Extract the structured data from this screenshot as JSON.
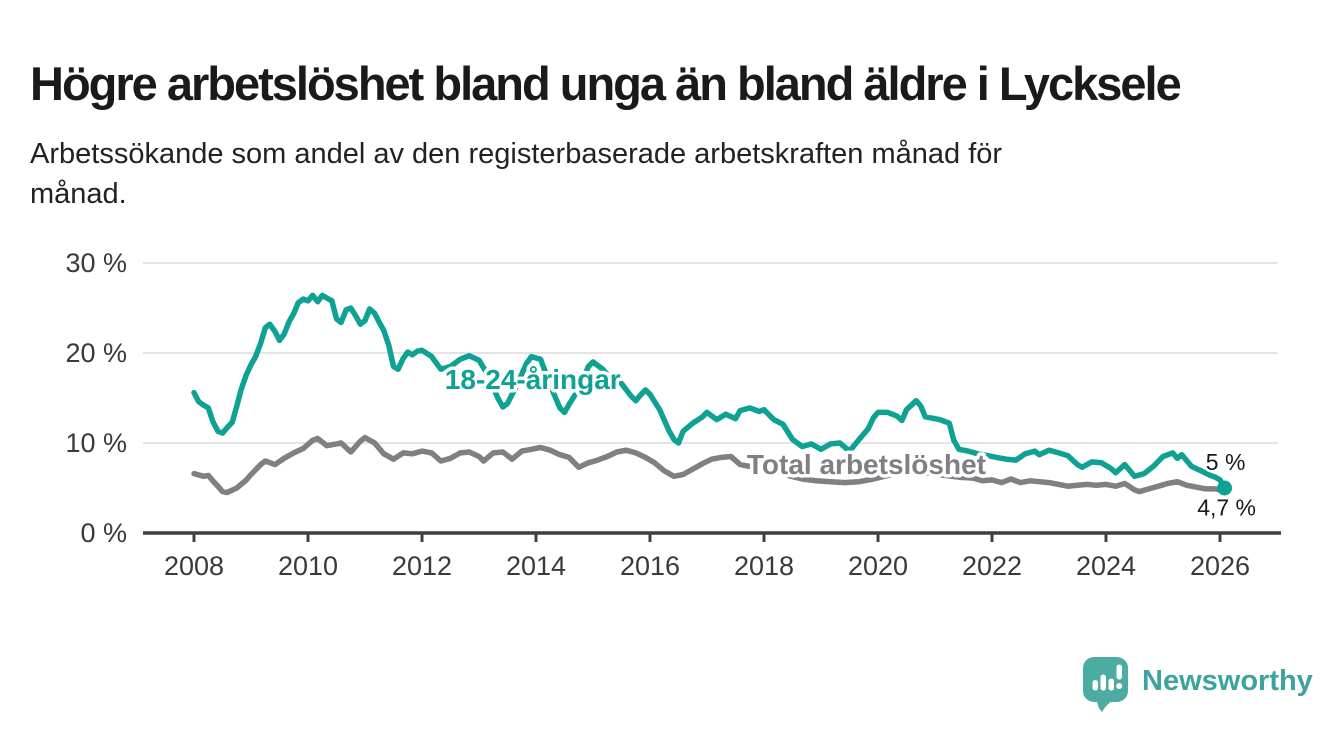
{
  "header": {
    "title": "Högre arbetslöshet bland unga än bland äldre i Lycksele",
    "subtitle_line1": "Arbetssökande som andel av den registerbaserade arbetskraften månad för",
    "subtitle_line2": "månad."
  },
  "footer": {
    "brand": "Newsworthy",
    "logo_icon": "speech-bubble-bar-chart",
    "brand_text_color": "#3ca49d",
    "logo_icon_color": "#4caca2"
  },
  "chart_data": {
    "type": "line",
    "title": "Högre arbetslöshet bland unga än bland äldre i Lycksele",
    "subtitle": "Arbetssökande som andel av den registerbaserade arbetskraften månad för månad.",
    "xlabel": "",
    "ylabel": "",
    "unit": "%",
    "xlim": [
      2007.1,
      2027.1
    ],
    "ylim": [
      0,
      31.5
    ],
    "grid": "horizontal",
    "legend": "direct-labels",
    "x_ticks": [
      2008,
      2010,
      2012,
      2014,
      2016,
      2018,
      2020,
      2022,
      2024,
      2026
    ],
    "x_tick_labels": [
      "2008",
      "2010",
      "2012",
      "2014",
      "2016",
      "2018",
      "2020",
      "2022",
      "2024",
      "2026"
    ],
    "y_ticks": [
      0,
      10,
      20,
      30
    ],
    "y_tick_labels": [
      "0 %",
      "10 %",
      "20 %",
      "30 %"
    ],
    "colors": {
      "grid": "#e4e4e4",
      "axis": "#3f3f3f",
      "tick_text": "#3a3a3a"
    },
    "series": [
      {
        "id": "youth",
        "name": "18-24-åringar",
        "color": "#0fa294",
        "width": 5.5,
        "end_dot": true,
        "end_label": "5 %",
        "last_value": 5.0,
        "points": [
          [
            2008.0,
            15.6
          ],
          [
            2008.08,
            14.6
          ],
          [
            2008.17,
            14.2
          ],
          [
            2008.25,
            13.9
          ],
          [
            2008.33,
            12.4
          ],
          [
            2008.42,
            11.3
          ],
          [
            2008.5,
            11.1
          ],
          [
            2008.58,
            11.7
          ],
          [
            2008.67,
            12.3
          ],
          [
            2008.75,
            14.1
          ],
          [
            2008.83,
            16.0
          ],
          [
            2008.92,
            17.6
          ],
          [
            2009.0,
            18.7
          ],
          [
            2009.08,
            19.6
          ],
          [
            2009.17,
            21.1
          ],
          [
            2009.25,
            22.8
          ],
          [
            2009.33,
            23.2
          ],
          [
            2009.42,
            22.4
          ],
          [
            2009.5,
            21.4
          ],
          [
            2009.58,
            22.1
          ],
          [
            2009.67,
            23.5
          ],
          [
            2009.75,
            24.4
          ],
          [
            2009.83,
            25.6
          ],
          [
            2009.92,
            26.0
          ],
          [
            2010.0,
            25.8
          ],
          [
            2010.08,
            26.4
          ],
          [
            2010.17,
            25.7
          ],
          [
            2010.25,
            26.4
          ],
          [
            2010.33,
            26.1
          ],
          [
            2010.42,
            25.8
          ],
          [
            2010.5,
            23.8
          ],
          [
            2010.58,
            23.4
          ],
          [
            2010.67,
            24.8
          ],
          [
            2010.75,
            25.0
          ],
          [
            2010.83,
            24.2
          ],
          [
            2010.92,
            23.2
          ],
          [
            2011.0,
            23.6
          ],
          [
            2011.08,
            24.9
          ],
          [
            2011.17,
            24.4
          ],
          [
            2011.25,
            23.4
          ],
          [
            2011.33,
            22.5
          ],
          [
            2011.42,
            20.8
          ],
          [
            2011.5,
            18.5
          ],
          [
            2011.58,
            18.2
          ],
          [
            2011.67,
            19.4
          ],
          [
            2011.75,
            20.1
          ],
          [
            2011.83,
            19.8
          ],
          [
            2011.92,
            20.2
          ],
          [
            2012.0,
            20.3
          ],
          [
            2012.17,
            19.6
          ],
          [
            2012.33,
            18.2
          ],
          [
            2012.5,
            18.5
          ],
          [
            2012.67,
            19.3
          ],
          [
            2012.83,
            19.7
          ],
          [
            2013.0,
            19.2
          ],
          [
            2013.17,
            17.4
          ],
          [
            2013.33,
            15.0
          ],
          [
            2013.42,
            14.0
          ],
          [
            2013.5,
            14.4
          ],
          [
            2013.67,
            16.5
          ],
          [
            2013.83,
            18.8
          ],
          [
            2013.92,
            19.6
          ],
          [
            2014.08,
            19.3
          ],
          [
            2014.25,
            16.4
          ],
          [
            2014.42,
            13.9
          ],
          [
            2014.5,
            13.4
          ],
          [
            2014.58,
            14.3
          ],
          [
            2014.75,
            16.0
          ],
          [
            2014.92,
            18.5
          ],
          [
            2015.0,
            19.0
          ],
          [
            2015.17,
            18.2
          ],
          [
            2015.33,
            17.0
          ],
          [
            2015.5,
            16.6
          ],
          [
            2015.67,
            15.2
          ],
          [
            2015.75,
            14.7
          ],
          [
            2015.83,
            15.3
          ],
          [
            2015.92,
            15.9
          ],
          [
            2016.0,
            15.4
          ],
          [
            2016.17,
            13.7
          ],
          [
            2016.33,
            11.4
          ],
          [
            2016.42,
            10.4
          ],
          [
            2016.5,
            10.0
          ],
          [
            2016.58,
            11.3
          ],
          [
            2016.75,
            12.2
          ],
          [
            2016.92,
            12.9
          ],
          [
            2017.0,
            13.4
          ],
          [
            2017.17,
            12.6
          ],
          [
            2017.33,
            13.2
          ],
          [
            2017.5,
            12.7
          ],
          [
            2017.58,
            13.6
          ],
          [
            2017.75,
            13.9
          ],
          [
            2017.92,
            13.5
          ],
          [
            2018.0,
            13.7
          ],
          [
            2018.17,
            12.6
          ],
          [
            2018.33,
            12.1
          ],
          [
            2018.5,
            10.4
          ],
          [
            2018.67,
            9.6
          ],
          [
            2018.83,
            9.9
          ],
          [
            2019.0,
            9.3
          ],
          [
            2019.17,
            9.9
          ],
          [
            2019.33,
            10.0
          ],
          [
            2019.5,
            9.1
          ],
          [
            2019.67,
            10.4
          ],
          [
            2019.83,
            11.6
          ],
          [
            2019.92,
            12.8
          ],
          [
            2020.0,
            13.4
          ],
          [
            2020.17,
            13.4
          ],
          [
            2020.33,
            13.0
          ],
          [
            2020.42,
            12.5
          ],
          [
            2020.5,
            13.7
          ],
          [
            2020.67,
            14.7
          ],
          [
            2020.75,
            14.1
          ],
          [
            2020.83,
            12.9
          ],
          [
            2020.92,
            12.8
          ],
          [
            2021.08,
            12.6
          ],
          [
            2021.25,
            12.2
          ],
          [
            2021.33,
            10.3
          ],
          [
            2021.42,
            9.3
          ],
          [
            2021.58,
            9.1
          ],
          [
            2021.75,
            8.8
          ],
          [
            2021.92,
            8.6
          ],
          [
            2022.08,
            8.4
          ],
          [
            2022.25,
            8.2
          ],
          [
            2022.42,
            8.1
          ],
          [
            2022.58,
            8.8
          ],
          [
            2022.75,
            9.1
          ],
          [
            2022.83,
            8.7
          ],
          [
            2023.0,
            9.2
          ],
          [
            2023.17,
            8.9
          ],
          [
            2023.33,
            8.6
          ],
          [
            2023.5,
            7.6
          ],
          [
            2023.58,
            7.3
          ],
          [
            2023.75,
            7.9
          ],
          [
            2023.92,
            7.8
          ],
          [
            2024.08,
            7.2
          ],
          [
            2024.17,
            6.7
          ],
          [
            2024.33,
            7.6
          ],
          [
            2024.5,
            6.3
          ],
          [
            2024.67,
            6.6
          ],
          [
            2024.83,
            7.4
          ],
          [
            2025.0,
            8.5
          ],
          [
            2025.17,
            8.9
          ],
          [
            2025.25,
            8.3
          ],
          [
            2025.33,
            8.7
          ],
          [
            2025.5,
            7.4
          ],
          [
            2025.67,
            6.9
          ],
          [
            2025.83,
            6.4
          ],
          [
            2025.92,
            6.2
          ],
          [
            2026.0,
            5.9
          ],
          [
            2026.08,
            5.0
          ]
        ]
      },
      {
        "id": "total",
        "name": "Total arbetslöshet",
        "color": "#7f7f84",
        "width": 5.5,
        "end_dot": false,
        "end_label": "4,7 %",
        "last_value": 4.7,
        "points": [
          [
            2008.0,
            6.6
          ],
          [
            2008.17,
            6.3
          ],
          [
            2008.25,
            6.4
          ],
          [
            2008.33,
            5.8
          ],
          [
            2008.42,
            5.2
          ],
          [
            2008.5,
            4.6
          ],
          [
            2008.58,
            4.5
          ],
          [
            2008.75,
            5.0
          ],
          [
            2008.92,
            5.9
          ],
          [
            2009.0,
            6.5
          ],
          [
            2009.17,
            7.6
          ],
          [
            2009.25,
            8.0
          ],
          [
            2009.42,
            7.6
          ],
          [
            2009.58,
            8.3
          ],
          [
            2009.75,
            8.9
          ],
          [
            2009.92,
            9.4
          ],
          [
            2010.08,
            10.3
          ],
          [
            2010.17,
            10.5
          ],
          [
            2010.33,
            9.7
          ],
          [
            2010.5,
            9.9
          ],
          [
            2010.58,
            10.0
          ],
          [
            2010.75,
            9.0
          ],
          [
            2010.92,
            10.2
          ],
          [
            2011.0,
            10.6
          ],
          [
            2011.17,
            10.0
          ],
          [
            2011.33,
            8.8
          ],
          [
            2011.5,
            8.2
          ],
          [
            2011.67,
            8.9
          ],
          [
            2011.83,
            8.8
          ],
          [
            2012.0,
            9.1
          ],
          [
            2012.17,
            8.9
          ],
          [
            2012.33,
            8.0
          ],
          [
            2012.5,
            8.3
          ],
          [
            2012.67,
            8.9
          ],
          [
            2012.83,
            9.0
          ],
          [
            2013.0,
            8.5
          ],
          [
            2013.08,
            8.0
          ],
          [
            2013.25,
            8.9
          ],
          [
            2013.42,
            9.0
          ],
          [
            2013.58,
            8.2
          ],
          [
            2013.75,
            9.1
          ],
          [
            2013.92,
            9.3
          ],
          [
            2014.08,
            9.5
          ],
          [
            2014.25,
            9.2
          ],
          [
            2014.42,
            8.7
          ],
          [
            2014.58,
            8.4
          ],
          [
            2014.75,
            7.3
          ],
          [
            2014.92,
            7.8
          ],
          [
            2015.08,
            8.1
          ],
          [
            2015.25,
            8.5
          ],
          [
            2015.42,
            9.0
          ],
          [
            2015.58,
            9.2
          ],
          [
            2015.75,
            8.9
          ],
          [
            2015.92,
            8.4
          ],
          [
            2016.08,
            7.8
          ],
          [
            2016.25,
            6.9
          ],
          [
            2016.42,
            6.3
          ],
          [
            2016.58,
            6.5
          ],
          [
            2016.75,
            7.1
          ],
          [
            2016.92,
            7.7
          ],
          [
            2017.08,
            8.2
          ],
          [
            2017.25,
            8.4
          ],
          [
            2017.42,
            8.5
          ],
          [
            2017.58,
            7.6
          ],
          [
            2017.75,
            7.4
          ],
          [
            2017.92,
            7.6
          ],
          [
            2018.17,
            7.0
          ],
          [
            2018.42,
            6.4
          ],
          [
            2018.67,
            6.0
          ],
          [
            2018.92,
            5.8
          ],
          [
            2019.17,
            5.7
          ],
          [
            2019.42,
            5.6
          ],
          [
            2019.67,
            5.7
          ],
          [
            2019.92,
            6.0
          ],
          [
            2020.17,
            6.4
          ],
          [
            2020.42,
            6.8
          ],
          [
            2020.67,
            6.9
          ],
          [
            2020.92,
            6.6
          ],
          [
            2021.17,
            6.4
          ],
          [
            2021.42,
            6.2
          ],
          [
            2021.67,
            6.1
          ],
          [
            2021.83,
            5.8
          ],
          [
            2022.0,
            5.9
          ],
          [
            2022.17,
            5.6
          ],
          [
            2022.33,
            6.0
          ],
          [
            2022.5,
            5.6
          ],
          [
            2022.67,
            5.8
          ],
          [
            2022.83,
            5.7
          ],
          [
            2023.0,
            5.6
          ],
          [
            2023.17,
            5.4
          ],
          [
            2023.33,
            5.2
          ],
          [
            2023.5,
            5.3
          ],
          [
            2023.67,
            5.4
          ],
          [
            2023.83,
            5.3
          ],
          [
            2024.0,
            5.4
          ],
          [
            2024.17,
            5.2
          ],
          [
            2024.33,
            5.5
          ],
          [
            2024.5,
            4.8
          ],
          [
            2024.58,
            4.6
          ],
          [
            2024.75,
            4.9
          ],
          [
            2024.92,
            5.2
          ],
          [
            2025.08,
            5.5
          ],
          [
            2025.25,
            5.7
          ],
          [
            2025.42,
            5.3
          ],
          [
            2025.58,
            5.1
          ],
          [
            2025.75,
            4.9
          ],
          [
            2025.92,
            4.9
          ],
          [
            2026.08,
            4.7
          ]
        ]
      }
    ],
    "annotations": [
      {
        "name": "series-label-youth",
        "text": "18-24-åringar",
        "x": 2012.4,
        "y": 16.0,
        "color": "#0fa294",
        "bold": true,
        "size": 28,
        "halo": 7
      },
      {
        "name": "series-label-total",
        "text": "Total arbetslöshet",
        "x": 2017.7,
        "y": 6.55,
        "color": "#7f7f84",
        "bold": true,
        "size": 28,
        "halo": 7
      },
      {
        "name": "end-value-label-youth",
        "text": "5 %",
        "x": 2025.75,
        "y": 7.0,
        "color": "#1a1a1a",
        "bold": false,
        "size": 23,
        "halo": 5
      },
      {
        "name": "end-value-label-total",
        "text": "4,7 %",
        "x": 2025.6,
        "y": 1.95,
        "color": "#1a1a1a",
        "bold": false,
        "size": 23,
        "halo": 5
      }
    ]
  }
}
